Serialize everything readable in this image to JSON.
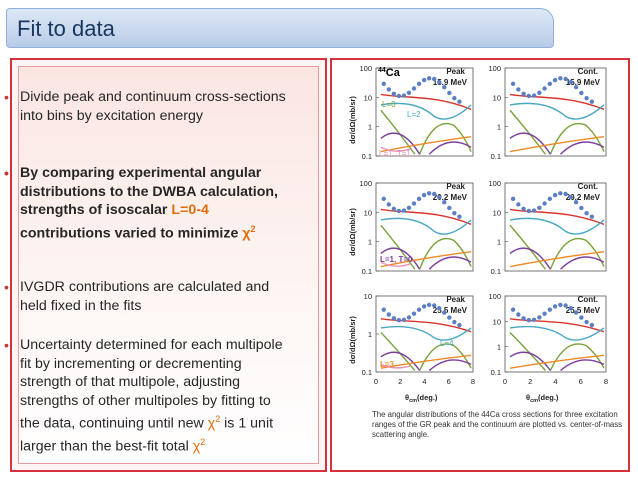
{
  "header": {
    "title": "Fit to data"
  },
  "bullets": [
    {
      "id": "b1",
      "text": "Divide peak and continuum cross-sections into bins by excitation energy"
    },
    {
      "id": "b2",
      "text_a": "By comparing experimental angular distributions to the DWBA calculation, strengths of isoscalar ",
      "text_b": "L=0-4",
      "text_c": " contributions varied to minimize ",
      "text_d": "χ",
      "text_e": "2"
    },
    {
      "id": "b3",
      "text": "IVGDR contributions are calculated and held fixed in the fits"
    },
    {
      "id": "b4",
      "text_a": "Uncertainty determined for each multipole fit by incrementing or decrementing strength of that multipole, adjusting strengths of other multipoles by fitting to the data, continuing until new ",
      "text_b": "χ",
      "text_c": "2",
      "text_d": " is 1 unit larger than the best-fit total ",
      "text_e": "χ",
      "text_f": "2"
    }
  ],
  "figure": {
    "caption": "The angular distributions of the 44Ca cross sections for three excitation ranges of the GR peak and the continuum are plotted vs. center-of-mass scattering angle.",
    "ylabel": "dσ/dΩ(mb/sr)",
    "xlabel_main": "θ",
    "xlabel_sub": "cm",
    "xlabel_unit": "(deg.)",
    "nucleus_mass": "44",
    "nucleus_symbol": "Ca",
    "x_ticks": [
      "0",
      "2",
      "4",
      "6",
      "8"
    ],
    "panels": [
      {
        "id": "p1",
        "label1": "Peak",
        "label2": "15.9 MeV",
        "yticks": [
          "100",
          "10",
          "1",
          "0.1"
        ]
      },
      {
        "id": "p2",
        "label1": "Cont.",
        "label2": "15.9 MeV",
        "yticks": [
          "100",
          "10",
          "1",
          "0.1"
        ]
      },
      {
        "id": "p3",
        "label1": "Peak",
        "label2": "20.2 MeV",
        "yticks": [
          "100",
          "10",
          "1",
          "0.1"
        ]
      },
      {
        "id": "p4",
        "label1": "Cont.",
        "label2": "20.2 MeV",
        "yticks": [
          "100",
          "10",
          "1",
          "0.1"
        ]
      },
      {
        "id": "p5",
        "label1": "Peak",
        "label2": "25.5 MeV",
        "yticks": [
          "10",
          "1",
          "0.1"
        ]
      },
      {
        "id": "p6",
        "label1": "Cont.",
        "label2": "25.5 MeV",
        "yticks": [
          "100",
          "10",
          "1",
          "0.1"
        ]
      }
    ],
    "annotations": {
      "l0": "L=0",
      "l2": "L=2",
      "l1t1_a": "L=1, T=1",
      "l1t0": "L=1, T=0",
      "l3": "L=3",
      "l4": "L=4"
    },
    "colors": {
      "data": "#5b7fc4",
      "l0": "#d9342b",
      "l1": "#7b3f9e",
      "l2": "#7aa23a",
      "l3": "#ee8a25",
      "l4": "#49a8c2",
      "ivgdr": "#e88fb4"
    }
  }
}
